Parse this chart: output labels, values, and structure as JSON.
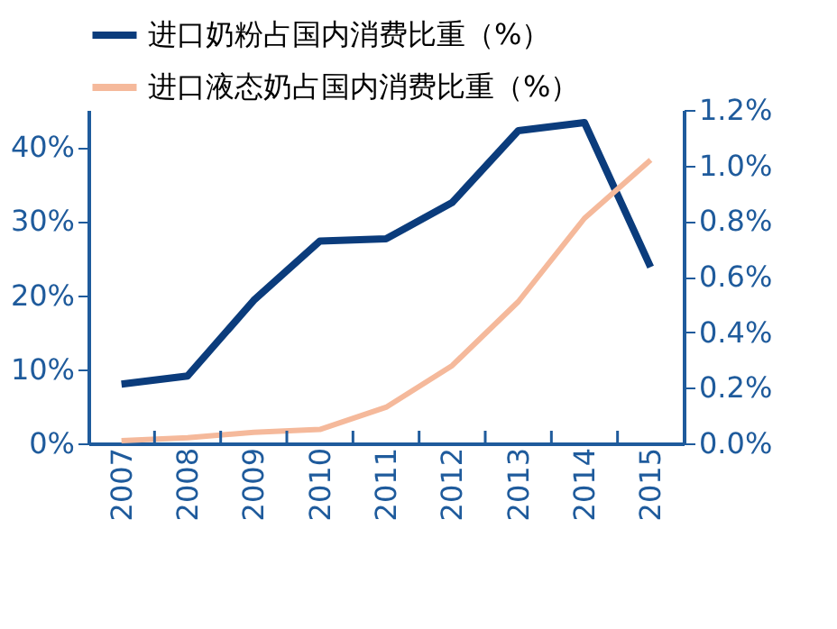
{
  "chart_data": {
    "type": "line",
    "categories": [
      "2007",
      "2008",
      "2009",
      "2010",
      "2011",
      "2012",
      "2013",
      "2014",
      "2015"
    ],
    "series": [
      {
        "name": "进口奶粉占国内消费比重（%）",
        "color": "#0b3c7c",
        "values": [
          8.0,
          9.1,
          19.3,
          27.3,
          27.6,
          32.5,
          42.2,
          43.3,
          23.8
        ]
      },
      {
        "name": "进口液态奶占国内消费比重（%）",
        "color": "#f5b99b",
        "axis": "y2",
        "values": [
          0.01,
          0.02,
          0.04,
          0.05,
          0.13,
          0.28,
          0.51,
          0.81,
          1.02
        ]
      }
    ],
    "ylim": [
      0,
      45
    ],
    "yticks": [
      {
        "value": 0,
        "label": "0%"
      },
      {
        "value": 10,
        "label": "10%"
      },
      {
        "value": 20,
        "label": "20%"
      },
      {
        "value": 30,
        "label": "30%"
      },
      {
        "value": 40,
        "label": "40%"
      }
    ],
    "y2lim": [
      0,
      1.2
    ],
    "y2ticks": [
      {
        "value": 0,
        "label": "0.0%"
      },
      {
        "value": 0.2,
        "label": "0.2%"
      },
      {
        "value": 0.4,
        "label": "0.4%"
      },
      {
        "value": 0.6,
        "label": "0.6%"
      },
      {
        "value": 0.8,
        "label": "0.8%"
      },
      {
        "value": 1.0,
        "label": "1.0%"
      },
      {
        "value": 1.2,
        "label": "1.2%"
      }
    ],
    "grid": false,
    "legend": "top left",
    "marker": "none",
    "line_style": "solid"
  }
}
